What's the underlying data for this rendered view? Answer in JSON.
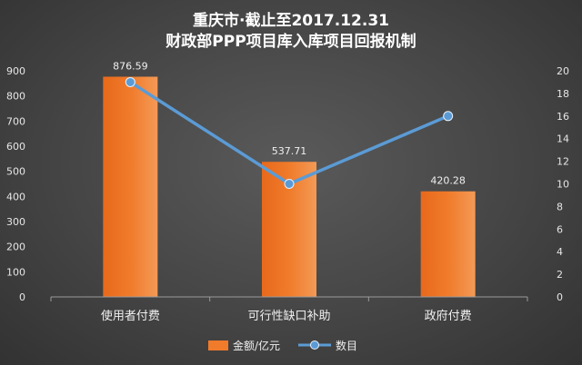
{
  "chart_data": {
    "type": "bar",
    "title": [
      "重庆市·截止至2017.12.31",
      "财政部PPP项目库入库项目回报机制"
    ],
    "categories": [
      "使用者付费",
      "可行性缺口补助",
      "政府付费"
    ],
    "series": [
      {
        "name": "金额/亿元",
        "type": "bar",
        "axis": "left",
        "values": [
          876.59,
          537.71,
          420.28
        ],
        "color": "#f07b2b"
      },
      {
        "name": "数目",
        "type": "line",
        "axis": "right",
        "values": [
          19,
          10,
          16
        ],
        "color": "#5b9bd5"
      }
    ],
    "data_labels": [
      "876.59",
      "537.71",
      "420.28"
    ],
    "ylim": [
      0,
      900
    ],
    "yticks": [
      "0",
      "100",
      "200",
      "300",
      "400",
      "500",
      "600",
      "700",
      "800",
      "900"
    ],
    "y2lim": [
      0,
      20
    ],
    "y2ticks": [
      "0",
      "2",
      "4",
      "6",
      "8",
      "10",
      "12",
      "14",
      "16",
      "18",
      "20"
    ],
    "grid": false,
    "legend": "bottom"
  }
}
